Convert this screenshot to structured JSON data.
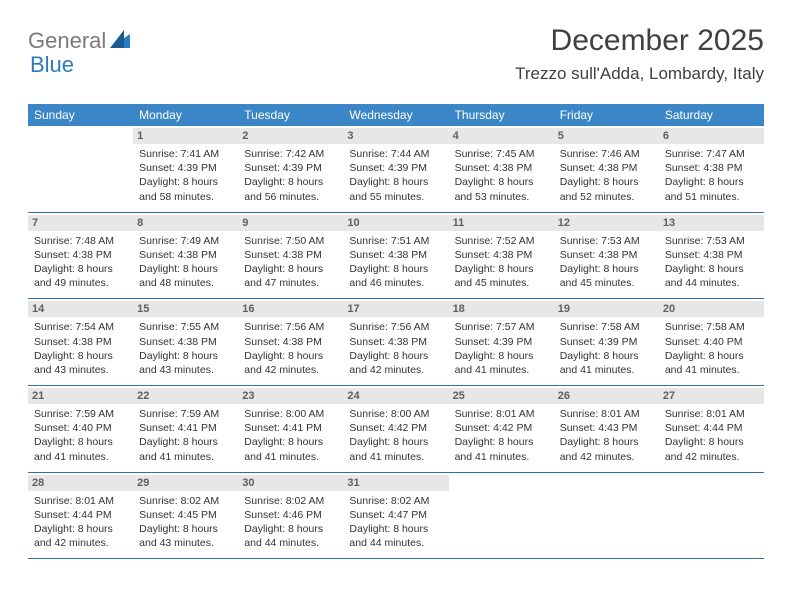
{
  "brand": {
    "part1": "General",
    "part2": "Blue"
  },
  "title": "December 2025",
  "location": "Trezzo sull'Adda, Lombardy, Italy",
  "colors": {
    "header_bg": "#3b86c6",
    "divider": "#2f6fa3",
    "daynum_bg": "#e7e7e7",
    "text": "#333333",
    "logo_gray": "#7a7a7a",
    "logo_blue": "#2b7bbf"
  },
  "days_of_week": [
    "Sunday",
    "Monday",
    "Tuesday",
    "Wednesday",
    "Thursday",
    "Friday",
    "Saturday"
  ],
  "weeks": [
    [
      null,
      {
        "n": "1",
        "sr": "Sunrise: 7:41 AM",
        "ss": "Sunset: 4:39 PM",
        "d1": "Daylight: 8 hours",
        "d2": "and 58 minutes."
      },
      {
        "n": "2",
        "sr": "Sunrise: 7:42 AM",
        "ss": "Sunset: 4:39 PM",
        "d1": "Daylight: 8 hours",
        "d2": "and 56 minutes."
      },
      {
        "n": "3",
        "sr": "Sunrise: 7:44 AM",
        "ss": "Sunset: 4:39 PM",
        "d1": "Daylight: 8 hours",
        "d2": "and 55 minutes."
      },
      {
        "n": "4",
        "sr": "Sunrise: 7:45 AM",
        "ss": "Sunset: 4:38 PM",
        "d1": "Daylight: 8 hours",
        "d2": "and 53 minutes."
      },
      {
        "n": "5",
        "sr": "Sunrise: 7:46 AM",
        "ss": "Sunset: 4:38 PM",
        "d1": "Daylight: 8 hours",
        "d2": "and 52 minutes."
      },
      {
        "n": "6",
        "sr": "Sunrise: 7:47 AM",
        "ss": "Sunset: 4:38 PM",
        "d1": "Daylight: 8 hours",
        "d2": "and 51 minutes."
      }
    ],
    [
      {
        "n": "7",
        "sr": "Sunrise: 7:48 AM",
        "ss": "Sunset: 4:38 PM",
        "d1": "Daylight: 8 hours",
        "d2": "and 49 minutes."
      },
      {
        "n": "8",
        "sr": "Sunrise: 7:49 AM",
        "ss": "Sunset: 4:38 PM",
        "d1": "Daylight: 8 hours",
        "d2": "and 48 minutes."
      },
      {
        "n": "9",
        "sr": "Sunrise: 7:50 AM",
        "ss": "Sunset: 4:38 PM",
        "d1": "Daylight: 8 hours",
        "d2": "and 47 minutes."
      },
      {
        "n": "10",
        "sr": "Sunrise: 7:51 AM",
        "ss": "Sunset: 4:38 PM",
        "d1": "Daylight: 8 hours",
        "d2": "and 46 minutes."
      },
      {
        "n": "11",
        "sr": "Sunrise: 7:52 AM",
        "ss": "Sunset: 4:38 PM",
        "d1": "Daylight: 8 hours",
        "d2": "and 45 minutes."
      },
      {
        "n": "12",
        "sr": "Sunrise: 7:53 AM",
        "ss": "Sunset: 4:38 PM",
        "d1": "Daylight: 8 hours",
        "d2": "and 45 minutes."
      },
      {
        "n": "13",
        "sr": "Sunrise: 7:53 AM",
        "ss": "Sunset: 4:38 PM",
        "d1": "Daylight: 8 hours",
        "d2": "and 44 minutes."
      }
    ],
    [
      {
        "n": "14",
        "sr": "Sunrise: 7:54 AM",
        "ss": "Sunset: 4:38 PM",
        "d1": "Daylight: 8 hours",
        "d2": "and 43 minutes."
      },
      {
        "n": "15",
        "sr": "Sunrise: 7:55 AM",
        "ss": "Sunset: 4:38 PM",
        "d1": "Daylight: 8 hours",
        "d2": "and 43 minutes."
      },
      {
        "n": "16",
        "sr": "Sunrise: 7:56 AM",
        "ss": "Sunset: 4:38 PM",
        "d1": "Daylight: 8 hours",
        "d2": "and 42 minutes."
      },
      {
        "n": "17",
        "sr": "Sunrise: 7:56 AM",
        "ss": "Sunset: 4:38 PM",
        "d1": "Daylight: 8 hours",
        "d2": "and 42 minutes."
      },
      {
        "n": "18",
        "sr": "Sunrise: 7:57 AM",
        "ss": "Sunset: 4:39 PM",
        "d1": "Daylight: 8 hours",
        "d2": "and 41 minutes."
      },
      {
        "n": "19",
        "sr": "Sunrise: 7:58 AM",
        "ss": "Sunset: 4:39 PM",
        "d1": "Daylight: 8 hours",
        "d2": "and 41 minutes."
      },
      {
        "n": "20",
        "sr": "Sunrise: 7:58 AM",
        "ss": "Sunset: 4:40 PM",
        "d1": "Daylight: 8 hours",
        "d2": "and 41 minutes."
      }
    ],
    [
      {
        "n": "21",
        "sr": "Sunrise: 7:59 AM",
        "ss": "Sunset: 4:40 PM",
        "d1": "Daylight: 8 hours",
        "d2": "and 41 minutes."
      },
      {
        "n": "22",
        "sr": "Sunrise: 7:59 AM",
        "ss": "Sunset: 4:41 PM",
        "d1": "Daylight: 8 hours",
        "d2": "and 41 minutes."
      },
      {
        "n": "23",
        "sr": "Sunrise: 8:00 AM",
        "ss": "Sunset: 4:41 PM",
        "d1": "Daylight: 8 hours",
        "d2": "and 41 minutes."
      },
      {
        "n": "24",
        "sr": "Sunrise: 8:00 AM",
        "ss": "Sunset: 4:42 PM",
        "d1": "Daylight: 8 hours",
        "d2": "and 41 minutes."
      },
      {
        "n": "25",
        "sr": "Sunrise: 8:01 AM",
        "ss": "Sunset: 4:42 PM",
        "d1": "Daylight: 8 hours",
        "d2": "and 41 minutes."
      },
      {
        "n": "26",
        "sr": "Sunrise: 8:01 AM",
        "ss": "Sunset: 4:43 PM",
        "d1": "Daylight: 8 hours",
        "d2": "and 42 minutes."
      },
      {
        "n": "27",
        "sr": "Sunrise: 8:01 AM",
        "ss": "Sunset: 4:44 PM",
        "d1": "Daylight: 8 hours",
        "d2": "and 42 minutes."
      }
    ],
    [
      {
        "n": "28",
        "sr": "Sunrise: 8:01 AM",
        "ss": "Sunset: 4:44 PM",
        "d1": "Daylight: 8 hours",
        "d2": "and 42 minutes."
      },
      {
        "n": "29",
        "sr": "Sunrise: 8:02 AM",
        "ss": "Sunset: 4:45 PM",
        "d1": "Daylight: 8 hours",
        "d2": "and 43 minutes."
      },
      {
        "n": "30",
        "sr": "Sunrise: 8:02 AM",
        "ss": "Sunset: 4:46 PM",
        "d1": "Daylight: 8 hours",
        "d2": "and 44 minutes."
      },
      {
        "n": "31",
        "sr": "Sunrise: 8:02 AM",
        "ss": "Sunset: 4:47 PM",
        "d1": "Daylight: 8 hours",
        "d2": "and 44 minutes."
      },
      null,
      null,
      null
    ]
  ]
}
